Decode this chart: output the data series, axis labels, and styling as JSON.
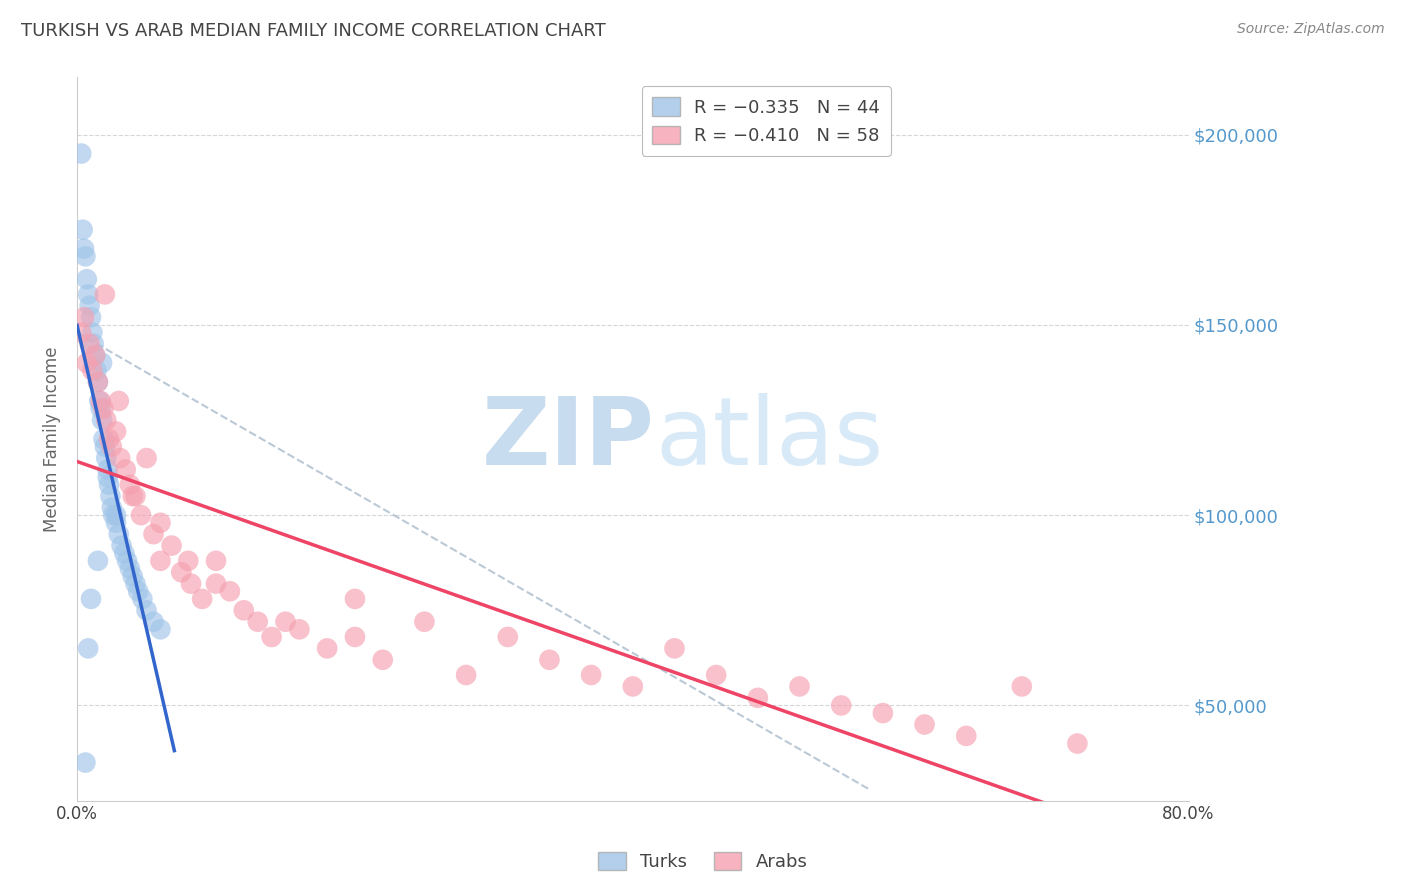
{
  "title": "TURKISH VS ARAB MEDIAN FAMILY INCOME CORRELATION CHART",
  "source": "Source: ZipAtlas.com",
  "ylabel": "Median Family Income",
  "xlim": [
    0.0,
    0.8
  ],
  "ylim": [
    25000,
    215000
  ],
  "yticks": [
    50000,
    100000,
    150000,
    200000
  ],
  "ytick_labels": [
    "$50,000",
    "$100,000",
    "$150,000",
    "$200,000"
  ],
  "xticks": [
    0.0,
    0.1,
    0.2,
    0.3,
    0.4,
    0.5,
    0.6,
    0.7,
    0.8
  ],
  "xtick_labels": [
    "0.0%",
    "",
    "",
    "",
    "",
    "",
    "",
    "",
    "80.0%"
  ],
  "turks_x": [
    0.003,
    0.004,
    0.005,
    0.006,
    0.007,
    0.008,
    0.009,
    0.01,
    0.011,
    0.012,
    0.013,
    0.014,
    0.015,
    0.016,
    0.017,
    0.018,
    0.019,
    0.02,
    0.021,
    0.022,
    0.023,
    0.024,
    0.025,
    0.026,
    0.028,
    0.03,
    0.032,
    0.034,
    0.036,
    0.038,
    0.04,
    0.042,
    0.044,
    0.047,
    0.05,
    0.055,
    0.06,
    0.018,
    0.022,
    0.028,
    0.015,
    0.01,
    0.008,
    0.006
  ],
  "turks_y": [
    195000,
    175000,
    170000,
    168000,
    162000,
    158000,
    155000,
    152000,
    148000,
    145000,
    142000,
    138000,
    135000,
    130000,
    128000,
    125000,
    120000,
    118000,
    115000,
    112000,
    108000,
    105000,
    102000,
    100000,
    98000,
    95000,
    92000,
    90000,
    88000,
    86000,
    84000,
    82000,
    80000,
    78000,
    75000,
    72000,
    70000,
    140000,
    110000,
    100000,
    88000,
    78000,
    65000,
    35000
  ],
  "arabs_x": [
    0.003,
    0.005,
    0.007,
    0.009,
    0.011,
    0.013,
    0.015,
    0.017,
    0.019,
    0.021,
    0.023,
    0.025,
    0.028,
    0.031,
    0.035,
    0.038,
    0.042,
    0.046,
    0.05,
    0.055,
    0.06,
    0.068,
    0.075,
    0.082,
    0.09,
    0.1,
    0.11,
    0.12,
    0.13,
    0.14,
    0.16,
    0.18,
    0.2,
    0.22,
    0.25,
    0.28,
    0.31,
    0.34,
    0.37,
    0.4,
    0.43,
    0.46,
    0.49,
    0.52,
    0.55,
    0.58,
    0.61,
    0.64,
    0.68,
    0.72,
    0.02,
    0.03,
    0.04,
    0.06,
    0.08,
    0.1,
    0.15,
    0.2
  ],
  "arabs_y": [
    148000,
    152000,
    140000,
    145000,
    138000,
    142000,
    135000,
    130000,
    128000,
    125000,
    120000,
    118000,
    122000,
    115000,
    112000,
    108000,
    105000,
    100000,
    115000,
    95000,
    88000,
    92000,
    85000,
    82000,
    78000,
    88000,
    80000,
    75000,
    72000,
    68000,
    70000,
    65000,
    78000,
    62000,
    72000,
    58000,
    68000,
    62000,
    58000,
    55000,
    65000,
    58000,
    52000,
    55000,
    50000,
    48000,
    45000,
    42000,
    55000,
    40000,
    158000,
    130000,
    105000,
    98000,
    88000,
    82000,
    72000,
    68000
  ],
  "blue_color": "#a0c4e8",
  "pink_color": "#f5a0b0",
  "blue_line_color": "#3366cc",
  "pink_line_color": "#ee4466",
  "gray_dash_color": "#aabbcc",
  "watermark_zip_color": "#c8dcf0",
  "watermark_atlas_color": "#d8eaf8",
  "bg_color": "#ffffff",
  "grid_color": "#cccccc",
  "axis_label_color": "#5599cc",
  "title_color": "#444444",
  "tick_color": "#444444",
  "blue_line_start_x": 0.0,
  "blue_line_end_x": 0.07,
  "pink_line_start_x": 0.0,
  "pink_line_end_x": 0.77,
  "gray_line_start_x": 0.0,
  "gray_line_end_x": 0.57
}
